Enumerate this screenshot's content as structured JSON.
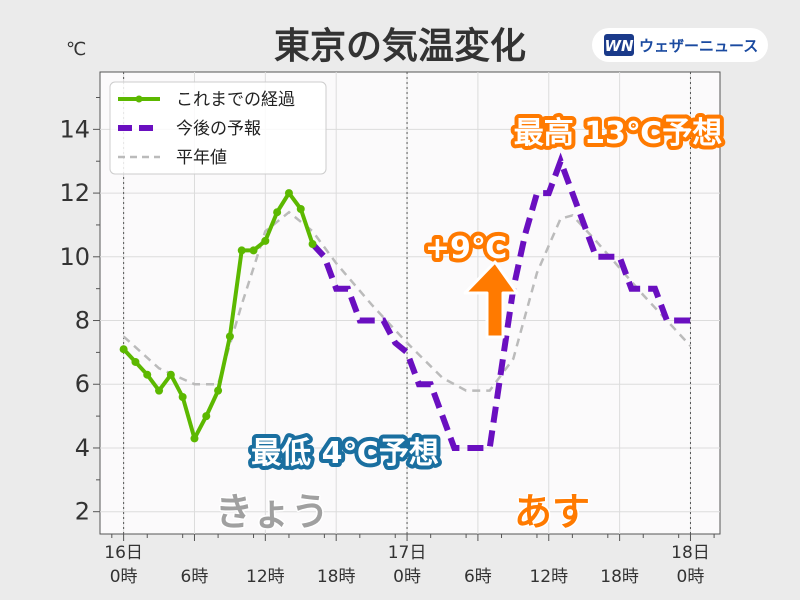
{
  "title": "東京の気温変化",
  "unit_label": "℃",
  "brand": {
    "logo_text": "WN",
    "name": "ウェザーニュース"
  },
  "legend": [
    {
      "label": "これまでの経過",
      "color": "#5cb800",
      "style": "solid-marker"
    },
    {
      "label": "今後の予報",
      "color": "#6a0fc0",
      "style": "dashed"
    },
    {
      "label": "平年値",
      "color": "#bbbbbb",
      "style": "dashed"
    }
  ],
  "annotations": {
    "high": "最高 13℃予想",
    "low": "最低 4℃予想",
    "rise": "+9℃",
    "today": "きょう",
    "tomorrow": "あす"
  },
  "colors": {
    "observed": "#5cb800",
    "forecast": "#6a0fc0",
    "normal": "#bbbbbb",
    "orange": "#ff7a00",
    "blue": "#1a6fa0",
    "today_text": "#a0a0a0",
    "tomorrow_text": "#ff7a00"
  },
  "chart_data": {
    "type": "line",
    "title": "東京の気温変化",
    "ylabel": "℃",
    "ylim": [
      1.3,
      15.8
    ],
    "xlim": [
      -2,
      50.5
    ],
    "yticks": [
      2,
      4,
      6,
      8,
      10,
      12,
      14
    ],
    "xticks": [
      {
        "x": 0,
        "label": "16日\n0時"
      },
      {
        "x": 6,
        "label": "6時"
      },
      {
        "x": 12,
        "label": "12時"
      },
      {
        "x": 18,
        "label": "18時"
      },
      {
        "x": 24,
        "label": "17日\n0時"
      },
      {
        "x": 30,
        "label": "6時"
      },
      {
        "x": 36,
        "label": "12時"
      },
      {
        "x": 42,
        "label": "18時"
      },
      {
        "x": 48,
        "label": "18日\n0時"
      }
    ],
    "grid": true,
    "legend_position": "top-left",
    "series": [
      {
        "name": "これまでの経過",
        "style": "solid-marker",
        "x": [
          0,
          1,
          2,
          3,
          4,
          5,
          6,
          7,
          8,
          9,
          10,
          11,
          12,
          13,
          14,
          15,
          16
        ],
        "y": [
          7.1,
          6.7,
          6.3,
          5.8,
          6.3,
          5.6,
          4.3,
          5.0,
          5.8,
          7.5,
          10.2,
          10.2,
          10.5,
          11.4,
          12.0,
          11.5,
          10.4
        ]
      },
      {
        "name": "今後の予報",
        "style": "dashed",
        "x": [
          16,
          17,
          18,
          19,
          20,
          21,
          22,
          23,
          24,
          25,
          26,
          27,
          28,
          29,
          30,
          31,
          32,
          33,
          34,
          35,
          36,
          37,
          38,
          39,
          40,
          41,
          42,
          43,
          44,
          45,
          46,
          47,
          48
        ],
        "y": [
          10.4,
          10.0,
          9.0,
          9.0,
          8.0,
          8.0,
          8.0,
          7.3,
          7.0,
          6.0,
          6.0,
          5.0,
          4.0,
          4.0,
          4.0,
          4.0,
          6.5,
          9.0,
          10.7,
          12.0,
          12.0,
          13.0,
          12.0,
          11.0,
          10.0,
          10.0,
          10.0,
          9.0,
          9.0,
          9.0,
          8.0,
          8.0,
          8.0
        ]
      },
      {
        "name": "平年値",
        "style": "dashed",
        "x": [
          0,
          3,
          6,
          8,
          10,
          12,
          14,
          16,
          18,
          21,
          24,
          27,
          29,
          31,
          33,
          35,
          37,
          38,
          40,
          44,
          48
        ],
        "y": [
          7.5,
          6.5,
          6.0,
          6.0,
          8.5,
          10.8,
          11.4,
          10.8,
          9.8,
          8.5,
          7.3,
          6.2,
          5.8,
          5.8,
          6.8,
          9.5,
          11.2,
          11.3,
          10.5,
          8.8,
          7.2
        ]
      }
    ]
  }
}
